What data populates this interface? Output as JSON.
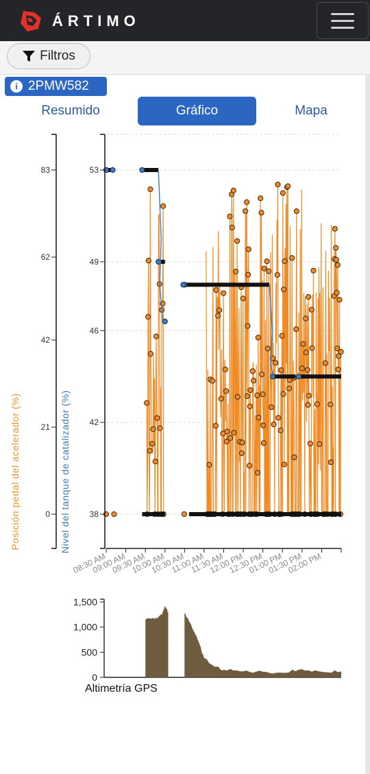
{
  "header": {
    "brand": "ÁRTIMO",
    "logo_icon": "artimo-logo-icon",
    "menu_icon": "hamburger-menu-icon"
  },
  "filters": {
    "label": "Filtros",
    "icon": "filter-icon"
  },
  "vehicle": {
    "plate": "2PMW582",
    "icon": "info-icon"
  },
  "tabs": [
    {
      "label": "Resumido",
      "active": false
    },
    {
      "label": "Gráfico",
      "active": true
    },
    {
      "label": "Mapa",
      "active": false
    }
  ],
  "colors": {
    "accel": "#f08a24",
    "catalyst": "#3d7bbf",
    "altitude": "#6f5b3e",
    "brand": "#e0312a",
    "tab_active": "#2b67c2"
  },
  "chart_data": [
    {
      "type": "scatter",
      "title": "",
      "series": [
        {
          "name": "Posición pedal del acelerador (%)",
          "axis": "left-outer",
          "yticks": [
            "0",
            "21",
            "42",
            "62",
            "83"
          ],
          "ylim": [
            0,
            83
          ]
        },
        {
          "name": "Nivel del tanque de catalizador (%)",
          "axis": "left-inner",
          "yticks": [
            "38",
            "42",
            "46",
            "49",
            "53"
          ],
          "ylim": [
            38,
            53
          ]
        }
      ],
      "xticks": [
        "08:30 AM",
        "09:00 AM",
        "09:30 AM",
        "10:00 AM",
        "10:30 AM",
        "11:00 AM",
        "11:30 AM",
        "12:00 PM",
        "12:30 PM",
        "01:00 PM",
        "01:30 PM",
        "02:00 PM"
      ],
      "xlim": [
        "08:30 AM",
        "02:30 PM"
      ],
      "grid": true,
      "catalyst_segments": [
        {
          "from": "08:30 AM",
          "to": "08:40 AM",
          "value": 53
        },
        {
          "from": "09:25 AM",
          "to": "09:50 AM",
          "value": 53
        },
        {
          "from": "09:50 AM",
          "to": "10:00 AM",
          "value": 49
        },
        {
          "from": "10:30 AM",
          "to": "12:40 PM",
          "value": 48
        },
        {
          "from": "12:45 PM",
          "to": "01:20 PM",
          "value": 44
        },
        {
          "from": "01:25 PM",
          "to": "02:30 PM",
          "value": 44
        }
      ]
    },
    {
      "type": "area",
      "title": "Altimetría GPS",
      "yticks": [
        "0",
        "500",
        "1,000",
        "1,500"
      ],
      "ylim": [
        0,
        1500
      ],
      "x": [
        "09:30 AM",
        "09:45 AM",
        "09:55 AM",
        "10:00 AM",
        "10:05 AM",
        "10:30 AM",
        "10:40 AM",
        "10:50 AM",
        "11:00 AM",
        "11:15 AM",
        "11:30 AM",
        "12:00 PM",
        "12:30 PM",
        "01:00 PM",
        "01:30 PM",
        "02:00 PM",
        "02:30 PM"
      ],
      "values": [
        1150,
        1160,
        1250,
        1430,
        1300,
        1290,
        1050,
        750,
        380,
        220,
        150,
        120,
        110,
        90,
        160,
        110,
        120
      ],
      "gaps": [
        [
          "10:07 AM",
          "10:28 AM"
        ]
      ]
    }
  ]
}
